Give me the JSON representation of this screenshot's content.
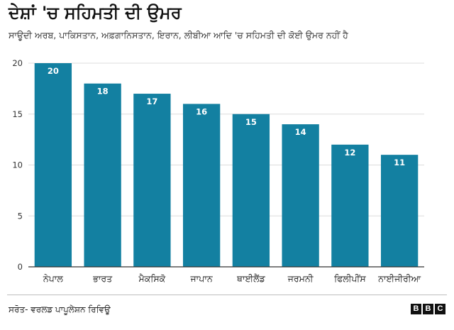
{
  "header": {
    "title": "ਦੇਸ਼ਾਂ 'ਚ ਸਹਿਮਤੀ ਦੀ ਉਮਰ",
    "subtitle": "ਸਾਊਦੀ ਅਰਬ, ਪਾਕਿਸਤਾਨ, ਅਫ਼ਗਾਨਿਸਤਾਨ, ਇਰਾਨ, ਲੀਬੀਆ ਆਦਿ 'ਚ ਸਹਿਮਤੀ ਦੀ ਕੋਈ ਉਮਰ ਨਹੀਂ ਹੈ"
  },
  "footer": {
    "source": "ਸਰੋਤ- ਵਰਲਡ ਪਾਪੂਲੇਸ਼ਨ ਰਿਵਿਊ",
    "logo": [
      "B",
      "B",
      "C"
    ]
  },
  "chart_data": {
    "type": "bar",
    "categories": [
      "ਨੇਪਾਲ",
      "ਭਾਰਤ",
      "ਮੈਕਸਿਕੋ",
      "ਜਾਪਾਨ",
      "ਥਾਈਲੈਂਡ",
      "ਜਰਮਨੀ",
      "ਫਿਲੀਪੀਂਸ",
      "ਨਾਈਜੀਰੀਆ"
    ],
    "values": [
      20,
      18,
      17,
      16,
      15,
      14,
      12,
      11
    ],
    "title": "ਦੇਸ਼ਾਂ 'ਚ ਸਹਿਮਤੀ ਦੀ ਉਮਰ",
    "subtitle": "ਸਾਊਦੀ ਅਰਬ, ਪਾਕਿਸਤਾਨ, ਅਫ਼ਗਾਨਿਸਤਾਨ, ਇਰਾਨ, ਲੀਬੀਆ ਆਦਿ 'ਚ ਸਹਿਮਤੀ ਦੀ ਕੋਈ ਉਮਰ ਨਹੀਂ ਹੈ",
    "xlabel": "",
    "ylabel": "",
    "ylim": [
      0,
      20
    ],
    "yticks": [
      0,
      5,
      10,
      15,
      20
    ],
    "grid": true,
    "data_labels": true,
    "colors": {
      "bar": "#1380a1",
      "grid": "#dcdcdc",
      "axis": "#333333",
      "label": "#ffffff"
    }
  }
}
